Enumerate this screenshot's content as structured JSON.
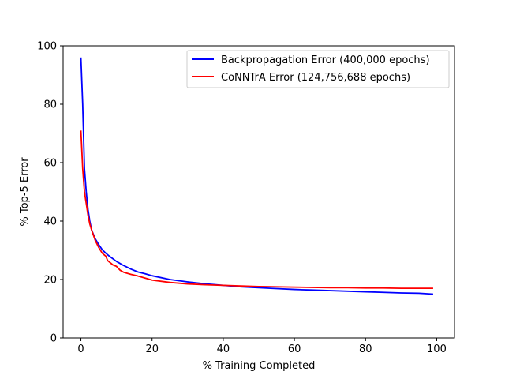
{
  "chart_data": {
    "type": "line",
    "title": "",
    "xlabel": "% Training Completed",
    "ylabel": "% Top-5 Error",
    "xlim": [
      -5,
      105
    ],
    "ylim": [
      0,
      100
    ],
    "xticks": [
      0,
      20,
      40,
      60,
      80,
      100
    ],
    "yticks": [
      0,
      20,
      40,
      60,
      80,
      100
    ],
    "grid": false,
    "legend_position": "top-right",
    "series": [
      {
        "name": "Backpropagation Error (400,000 epochs)",
        "color": "#0000ff",
        "x": [
          0,
          0.5,
          1,
          1.5,
          2,
          2.5,
          3,
          4,
          5,
          6,
          7,
          8,
          10,
          12,
          14,
          16,
          18,
          20,
          25,
          30,
          35,
          40,
          45,
          50,
          55,
          60,
          65,
          70,
          75,
          80,
          85,
          90,
          95,
          99
        ],
        "y": [
          96,
          80,
          58,
          50,
          44,
          40,
          37,
          34,
          32,
          30.2,
          29,
          28,
          26.2,
          24.8,
          23.6,
          22.6,
          22,
          21.3,
          20,
          19.2,
          18.5,
          18,
          17.5,
          17.2,
          16.9,
          16.6,
          16.4,
          16.2,
          16,
          15.8,
          15.6,
          15.4,
          15.3,
          15
        ]
      },
      {
        "name": "CoNNTrA Error (124,756,688 epochs)",
        "color": "#ff0000",
        "x": [
          0,
          0.5,
          1,
          1.5,
          2,
          2.5,
          3,
          4,
          5,
          6,
          7,
          7.5,
          8,
          9,
          10,
          11,
          12,
          14,
          16,
          18,
          20,
          25,
          30,
          35,
          40,
          45,
          50,
          55,
          60,
          65,
          70,
          75,
          80,
          85,
          90,
          95,
          99
        ],
        "y": [
          71,
          58,
          50,
          46,
          42,
          39,
          37,
          33.5,
          31,
          29,
          28,
          26.5,
          26,
          25,
          24.5,
          23.2,
          22.5,
          21.8,
          21.2,
          20.5,
          19.8,
          19,
          18.5,
          18.2,
          18,
          17.8,
          17.6,
          17.5,
          17.4,
          17.3,
          17.2,
          17.2,
          17.1,
          17.1,
          17,
          17,
          17
        ]
      }
    ]
  }
}
